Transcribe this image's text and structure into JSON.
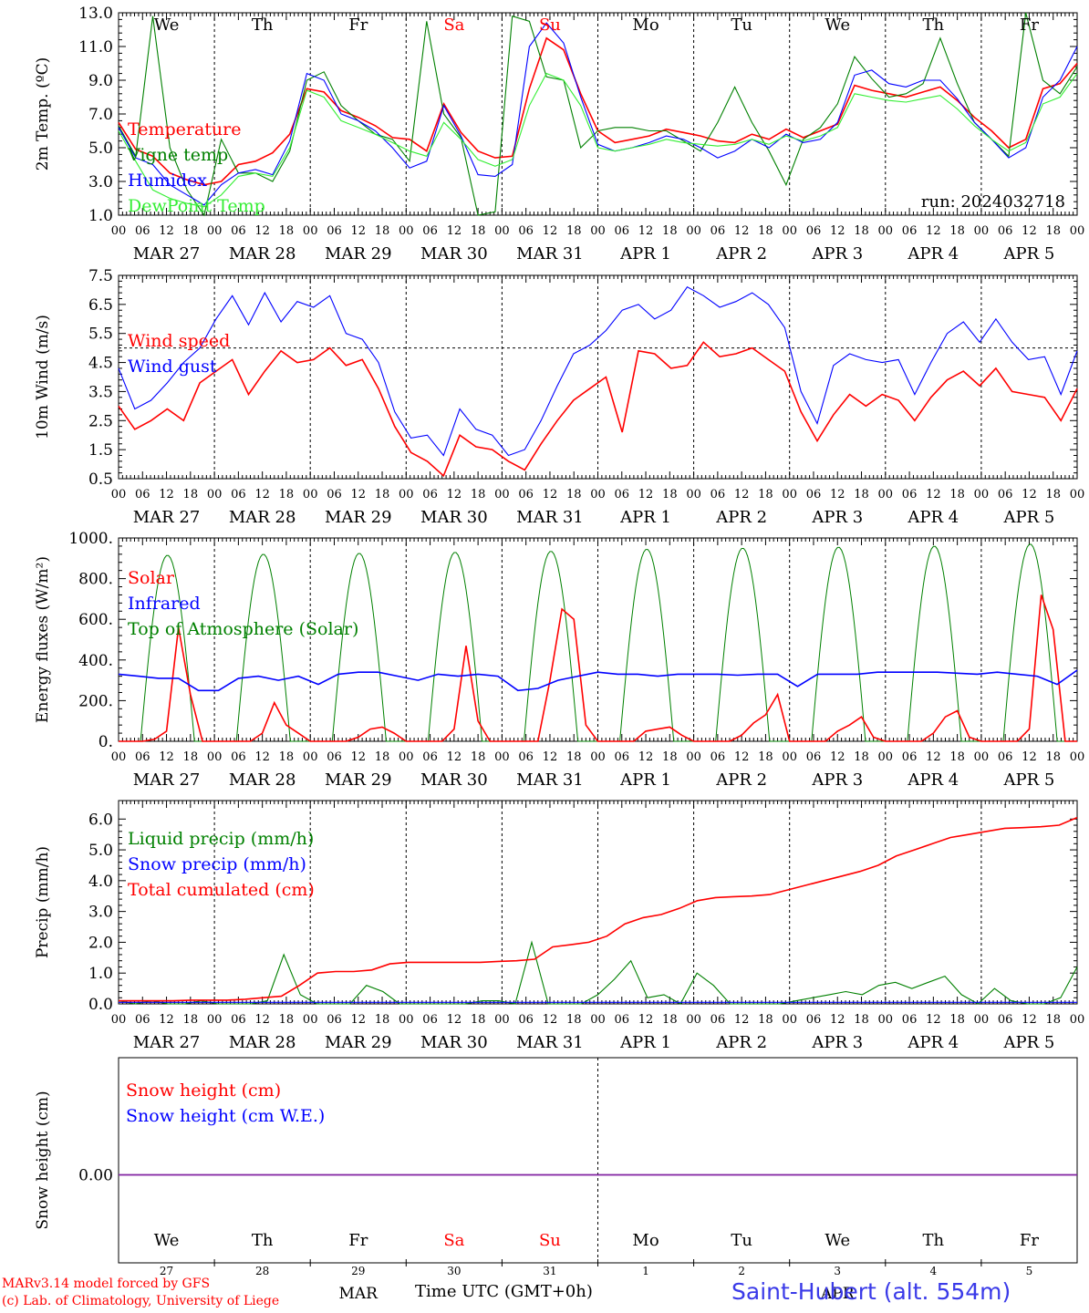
{
  "run_label": "run: 2024032718",
  "days": [
    "MAR 27",
    "MAR 28",
    "MAR 29",
    "MAR 30",
    "MAR 31",
    "APR  1",
    "APR  2",
    "APR  3",
    "APR  4",
    "APR  5"
  ],
  "weekdays": [
    "We",
    "Th",
    "Fr",
    "Sa",
    "Su",
    "Mo",
    "Tu",
    "We",
    "Th",
    "Fr"
  ],
  "weekend_flags": [
    false,
    false,
    false,
    true,
    true,
    false,
    false,
    false,
    false,
    false
  ],
  "bottom_day_numbers": [
    "27",
    "28",
    "29",
    "30",
    "31",
    "1",
    "2",
    "3",
    "4",
    "5"
  ],
  "bottom_month_labels": [
    "MAR",
    "APR"
  ],
  "hour_ticks": [
    "00",
    "06",
    "12",
    "18"
  ],
  "last_tick": "00",
  "colors": {
    "red": "#ff0000",
    "blue": "#0000ff",
    "green": "#008000",
    "lightgreen": "#33ee33",
    "purple": "#8020a0",
    "grid": "#000000"
  },
  "footer": {
    "model_line": "MARv3.14 model forced by GFS",
    "copyright_line": "(c) Lab. of Climatology, University of Liege",
    "axis_title": "Time UTC (GMT+0h)",
    "station": "Saint-Hubert (alt. 554m)"
  },
  "chart_data": [
    {
      "type": "line",
      "ylabel": "2m Temp. (ºC)",
      "ylim": [
        1.0,
        13.0
      ],
      "yticks": [
        "1.0",
        "3.0",
        "5.0",
        "7.0",
        "9.0",
        "11.0",
        "13.0"
      ],
      "ytick_values": [
        1,
        3,
        5,
        7,
        9,
        11,
        13
      ],
      "series": [
        {
          "name": "Temperature",
          "color": "#ff0000",
          "step_h": 6,
          "values": [
            6.5,
            4.9,
            4.5,
            3.5,
            3.1,
            2.8,
            3.0,
            4.0,
            4.2,
            4.7,
            5.8,
            8.5,
            8.3,
            7.2,
            6.8,
            6.3,
            5.6,
            5.5,
            4.8,
            7.6,
            5.9,
            4.8,
            4.4,
            4.5,
            8.5,
            11.5,
            10.8,
            8.2,
            6.0,
            5.3,
            5.5,
            5.7,
            6.1,
            5.9,
            5.7,
            5.4,
            5.3,
            5.8,
            5.5,
            6.1,
            5.6,
            6.0,
            6.4,
            8.7,
            8.4,
            8.2,
            8.0,
            8.3,
            8.6,
            7.8,
            6.8,
            6.0,
            5.0,
            5.5,
            8.5,
            8.8,
            10.0
          ]
        },
        {
          "name": "Vigne temp",
          "color": "#008000",
          "step_h": 6,
          "values": [
            6.3,
            4.5,
            12.8,
            5.0,
            2.5,
            1.0,
            5.5,
            3.5,
            3.5,
            3.0,
            4.8,
            9.0,
            9.5,
            7.5,
            6.6,
            5.8,
            5.5,
            4.2,
            12.5,
            7.0,
            5.6,
            1.0,
            1.2,
            12.8,
            12.5,
            9.2,
            9.0,
            5.0,
            6.0,
            6.2,
            6.2,
            6.0,
            6.0,
            5.4,
            4.8,
            6.5,
            8.6,
            6.5,
            4.8,
            2.8,
            5.5,
            6.2,
            7.6,
            10.4,
            9.1,
            8.0,
            8.2,
            8.8,
            11.5,
            8.8,
            6.5,
            5.5,
            4.5,
            13.0,
            9.0,
            8.2,
            9.8
          ]
        },
        {
          "name": "Humidex",
          "color": "#0000ff",
          "step_h": 6,
          "values": [
            6.2,
            4.4,
            4.0,
            2.8,
            2.2,
            1.6,
            2.8,
            3.5,
            3.7,
            3.4,
            5.4,
            9.4,
            9.0,
            7.0,
            6.6,
            6.0,
            5.0,
            3.8,
            4.2,
            7.5,
            5.7,
            3.4,
            3.3,
            4.0,
            11.0,
            12.4,
            11.2,
            8.0,
            5.2,
            4.8,
            5.0,
            5.3,
            5.7,
            5.5,
            5.0,
            4.4,
            4.8,
            5.5,
            5.0,
            5.8,
            5.3,
            5.5,
            6.5,
            9.3,
            9.6,
            8.8,
            8.6,
            9.0,
            9.0,
            7.9,
            6.5,
            5.5,
            4.4,
            5.0,
            8.0,
            9.0,
            11.0
          ]
        },
        {
          "name": "DewPoint Temp",
          "color": "#33ee33",
          "step_h": 6,
          "values": [
            6.0,
            4.2,
            2.5,
            2.0,
            1.7,
            1.5,
            2.2,
            3.3,
            3.5,
            3.3,
            5.0,
            8.4,
            8.0,
            6.6,
            6.2,
            5.8,
            5.3,
            4.8,
            4.5,
            6.5,
            5.5,
            4.3,
            3.9,
            4.3,
            7.5,
            9.4,
            9.0,
            7.5,
            5.0,
            4.8,
            5.0,
            5.2,
            5.5,
            5.3,
            5.2,
            5.1,
            5.2,
            5.5,
            5.2,
            5.7,
            5.4,
            5.7,
            6.2,
            8.2,
            8.0,
            7.8,
            7.7,
            7.9,
            8.1,
            7.3,
            6.3,
            5.5,
            4.8,
            5.3,
            7.6,
            8.0,
            9.4
          ]
        }
      ]
    },
    {
      "type": "line",
      "ylabel": "10m Wind (m/s)",
      "ylim": [
        0.5,
        7.5
      ],
      "yticks": [
        "0.5",
        "1.5",
        "2.5",
        "3.5",
        "4.5",
        "5.5",
        "6.5",
        "7.5"
      ],
      "ytick_values": [
        0.5,
        1.5,
        2.5,
        3.5,
        4.5,
        5.5,
        6.5,
        7.5
      ],
      "hline": 5.0,
      "series": [
        {
          "name": "Wind speed",
          "color": "#ff0000",
          "step_h": 6,
          "values": [
            3.0,
            2.2,
            2.5,
            2.9,
            2.5,
            3.8,
            4.2,
            4.6,
            3.4,
            4.2,
            4.9,
            4.5,
            4.6,
            5.0,
            4.4,
            4.6,
            3.6,
            2.3,
            1.4,
            1.1,
            0.6,
            2.0,
            1.6,
            1.5,
            1.1,
            0.8,
            1.7,
            2.5,
            3.2,
            3.6,
            4.0,
            2.1,
            4.9,
            4.8,
            4.3,
            4.4,
            5.2,
            4.7,
            4.8,
            5.0,
            4.6,
            4.2,
            2.8,
            1.8,
            2.7,
            3.4,
            3.0,
            3.4,
            3.2,
            2.5,
            3.3,
            3.9,
            4.2,
            3.7,
            4.3,
            3.5,
            3.4,
            3.3,
            2.5,
            3.6
          ]
        },
        {
          "name": "Wind gust",
          "color": "#0000ff",
          "step_h": 6,
          "values": [
            4.3,
            2.9,
            3.2,
            3.8,
            4.5,
            5.0,
            6.0,
            6.8,
            5.8,
            6.9,
            5.9,
            6.6,
            6.4,
            6.8,
            5.5,
            5.3,
            4.5,
            2.8,
            1.9,
            2.0,
            1.3,
            2.9,
            2.2,
            2.0,
            1.3,
            1.5,
            2.5,
            3.7,
            4.8,
            5.1,
            5.6,
            6.3,
            6.5,
            6.0,
            6.3,
            7.1,
            6.8,
            6.4,
            6.6,
            6.9,
            6.5,
            5.7,
            3.5,
            2.4,
            4.4,
            4.8,
            4.6,
            4.5,
            4.6,
            3.4,
            4.5,
            5.5,
            5.9,
            5.2,
            6.0,
            5.2,
            4.6,
            4.7,
            3.4,
            4.9
          ]
        }
      ]
    },
    {
      "type": "line",
      "ylabel": "Energy fluxes (W/m²)",
      "ylim": [
        0,
        1000
      ],
      "yticks": [
        "0.",
        "200.",
        "400.",
        "600.",
        "800.",
        "1000."
      ],
      "ytick_values": [
        0,
        200,
        400,
        600,
        800,
        1000
      ],
      "series": [
        {
          "name": "Solar",
          "color": "#ff0000",
          "step_h": 3,
          "values": [
            0,
            0,
            0,
            10,
            50,
            560,
            230,
            0,
            0,
            0,
            0,
            0,
            40,
            190,
            80,
            40,
            0,
            0,
            0,
            0,
            20,
            60,
            70,
            40,
            0,
            0,
            0,
            0,
            60,
            470,
            100,
            0,
            0,
            0,
            0,
            0,
            300,
            650,
            600,
            80,
            0,
            0,
            0,
            0,
            50,
            60,
            70,
            30,
            0,
            0,
            0,
            0,
            30,
            90,
            130,
            230,
            0,
            0,
            0,
            0,
            50,
            80,
            120,
            20,
            0,
            0,
            0,
            0,
            40,
            120,
            150,
            20,
            0,
            0,
            0,
            0,
            60,
            720,
            550,
            0,
            0
          ]
        },
        {
          "name": "Infrared",
          "color": "#0000ff",
          "step_h": 6,
          "values": [
            330,
            320,
            310,
            310,
            250,
            250,
            310,
            320,
            300,
            320,
            280,
            330,
            340,
            340,
            320,
            300,
            330,
            320,
            330,
            320,
            250,
            260,
            300,
            320,
            340,
            330,
            330,
            320,
            330,
            330,
            330,
            325,
            330,
            330,
            270,
            330,
            330,
            330,
            340,
            340,
            340,
            340,
            335,
            330,
            340,
            330,
            320,
            280,
            350
          ]
        },
        {
          "name": "Top of Atmosphere (Solar)",
          "color": "#008000",
          "step_h": 1,
          "values": []
        }
      ],
      "toa_peaks": [
        915,
        920,
        925,
        930,
        935,
        945,
        950,
        955,
        960,
        970
      ]
    },
    {
      "type": "line",
      "ylabel": "Precip (mm/h)",
      "ylim": [
        0,
        6.6
      ],
      "yticks": [
        "0.0",
        "1.0",
        "2.0",
        "3.0",
        "4.0",
        "5.0",
        "6.0"
      ],
      "ytick_values": [
        0,
        1,
        2,
        3,
        4,
        5,
        6
      ],
      "series": [
        {
          "name": "Liquid precip (mm/h)",
          "color": "#008000",
          "step_h": 6,
          "values": [
            0.1,
            0,
            0.1,
            0,
            0,
            0.1,
            0,
            0,
            0,
            0.1,
            1.6,
            0.3,
            0,
            0,
            0,
            0.6,
            0.4,
            0,
            0,
            0,
            0,
            0,
            0.1,
            0.1,
            0,
            2.0,
            0,
            0,
            0,
            0.3,
            0.8,
            1.4,
            0.2,
            0.3,
            0,
            1.0,
            0.6,
            0,
            0,
            0,
            0,
            0.1,
            0.2,
            0.3,
            0.4,
            0.3,
            0.6,
            0.7,
            0.5,
            0.7,
            0.9,
            0.3,
            0,
            0.5,
            0.1,
            0,
            0,
            0.2,
            1.2
          ]
        },
        {
          "name": "Snow precip (mm/h)",
          "color": "#0000ff",
          "step_h": 6,
          "values": [
            0.05,
            0.05,
            0.05,
            0.05,
            0.05,
            0.05,
            0.05,
            0.05,
            0.05,
            0.05,
            0.05,
            0.05,
            0.05,
            0.05,
            0.05,
            0.05,
            0.05,
            0.05,
            0.05,
            0.05,
            0.05,
            0.05,
            0.05,
            0.05,
            0.05,
            0.05,
            0.05,
            0.05,
            0.05,
            0.05,
            0.05,
            0.05,
            0.05,
            0.05,
            0.05,
            0.05,
            0.05,
            0.05,
            0.05,
            0.05,
            0.05,
            0.05,
            0.05,
            0.05,
            0.05,
            0.05,
            0.05,
            0.05,
            0.05,
            0.05,
            0.05,
            0.05,
            0.05,
            0.05,
            0.05,
            0.05,
            0.05,
            0.05,
            0.05,
            0.05,
            0.05
          ]
        },
        {
          "name": "Total cumulated (cm)",
          "color": "#ff0000",
          "step_h": 6,
          "values": [
            0.1,
            0.1,
            0.1,
            0.1,
            0.12,
            0.12,
            0.12,
            0.15,
            0.2,
            0.25,
            0.6,
            1.0,
            1.05,
            1.05,
            1.1,
            1.3,
            1.35,
            1.35,
            1.35,
            1.35,
            1.35,
            1.38,
            1.4,
            1.45,
            1.85,
            1.92,
            2.0,
            2.2,
            2.6,
            2.8,
            2.9,
            3.1,
            3.35,
            3.45,
            3.48,
            3.5,
            3.55,
            3.7,
            3.85,
            4.0,
            4.15,
            4.3,
            4.5,
            4.8,
            5.0,
            5.2,
            5.4,
            5.5,
            5.6,
            5.7,
            5.72,
            5.75,
            5.8,
            6.05
          ]
        }
      ]
    },
    {
      "type": "line",
      "ylabel": "Snow height (cm)",
      "yticks": [
        "0.00"
      ],
      "series": [
        {
          "name": "Snow height (cm)",
          "color": "#ff0000",
          "values": [
            0,
            0
          ]
        },
        {
          "name": "Snow height (cm W.E.)",
          "color": "#0000ff",
          "values": [
            0,
            0
          ]
        }
      ]
    }
  ]
}
